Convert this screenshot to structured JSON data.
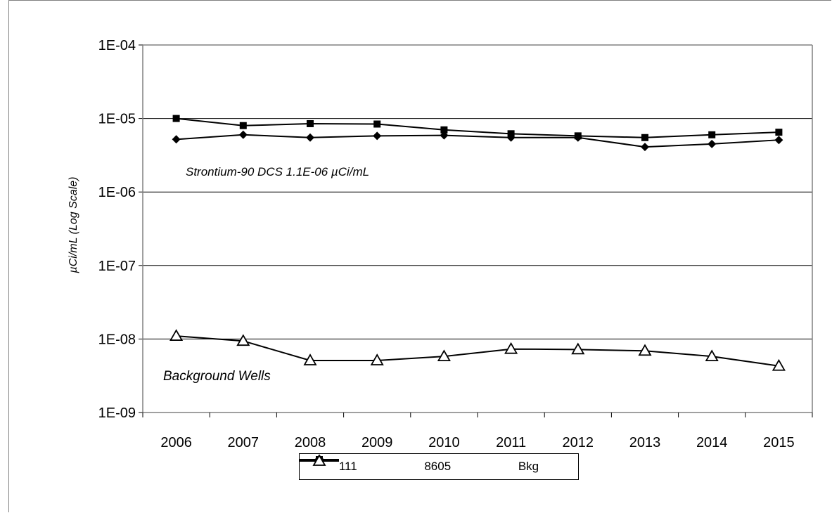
{
  "chart_data": {
    "type": "line",
    "title": "",
    "xlabel": "",
    "ylabel": "µCi/mL  (Log Scale)",
    "y_scale": "log",
    "ylim": [
      1e-09,
      0.0001
    ],
    "y_ticks": [
      1e-09,
      1e-08,
      1e-07,
      1e-06,
      1e-05,
      0.0001
    ],
    "y_tick_labels": [
      "1E-09",
      "1E-08",
      "1E-07",
      "1E-06",
      "1E-05",
      "1E-04"
    ],
    "categories": [
      "2006",
      "2007",
      "2008",
      "2009",
      "2010",
      "2011",
      "2012",
      "2013",
      "2014",
      "2015"
    ],
    "grid": "horizontal major",
    "legend_position": "bottom",
    "series": [
      {
        "name": "111",
        "marker": "diamond",
        "values": [
          5.2e-06,
          6e-06,
          5.5e-06,
          5.8e-06,
          5.9e-06,
          5.5e-06,
          5.5e-06,
          4.1e-06,
          4.5e-06,
          5.1e-06
        ]
      },
      {
        "name": "8605",
        "marker": "square",
        "values": [
          1e-05,
          8e-06,
          8.5e-06,
          8.4e-06,
          7e-06,
          6.2e-06,
          5.8e-06,
          5.5e-06,
          6e-06,
          6.5e-06
        ]
      },
      {
        "name": "Bkg",
        "marker": "triangle-open",
        "values": [
          1.1e-08,
          9.4e-09,
          5.1e-09,
          5.1e-09,
          5.8e-09,
          7.3e-09,
          7.2e-09,
          6.9e-09,
          5.8e-09,
          4.3e-09
        ]
      }
    ],
    "annotations": [
      {
        "text": "Strontium-90  DCS 1.1E-06  µCi/mL"
      },
      {
        "text": "Background Wells"
      }
    ]
  }
}
